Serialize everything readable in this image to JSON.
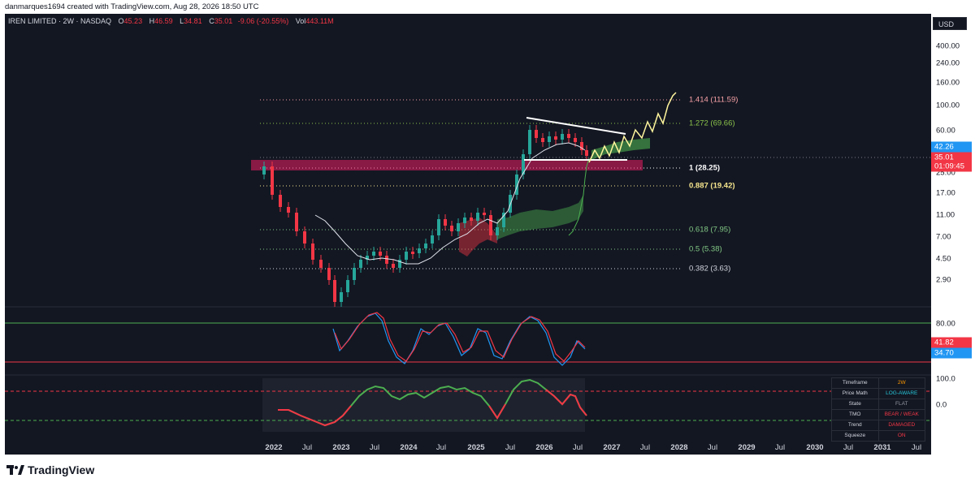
{
  "topline": "danmarques1694 created with TradingView.com, Aug 28, 2026 18:50 UTC",
  "header": {
    "symbol": "IREN LIMITED · 2W · NASDAQ",
    "open_label": "O",
    "open": "45.23",
    "high_label": "H",
    "high": "46.59",
    "low_label": "L",
    "low": "34.81",
    "close_label": "C",
    "close": "35.01",
    "change": "-9.06 (-20.55%)",
    "vol_label": "Vol",
    "vol": "443.11M"
  },
  "currency": "USD",
  "price_axis": [
    "400.00",
    "240.00",
    "160.00",
    "100.00",
    "60.00",
    "25.00",
    "17.00",
    "11.00",
    "7.00",
    "4.50",
    "2.90"
  ],
  "price_labels": {
    "ma_value": "42.26",
    "last_price": "35.01",
    "countdown": "01:09:45"
  },
  "fib_levels": [
    {
      "label": "1.414 (111.59)",
      "color": "#f7a1a6"
    },
    {
      "label": "1.272 (69.66)",
      "color": "#8bc34a"
    },
    {
      "label": "1 (28.25)",
      "color": "#ffffff"
    },
    {
      "label": "0.887 (19.42)",
      "color": "#f6e58d"
    },
    {
      "label": "0.618 (7.95)",
      "color": "#81c784"
    },
    {
      "label": "0.5 (5.38)",
      "color": "#81c784"
    },
    {
      "label": "0.382 (3.63)",
      "color": "#d1d4dc"
    }
  ],
  "oscillator_axis": {
    "upper": "80.00",
    "val1": "41.82",
    "val2": "34.70"
  },
  "tmo_axis": {
    "upper": "100.0",
    "zero": "0.0"
  },
  "time_axis": [
    "2022",
    "Jul",
    "2023",
    "Jul",
    "2024",
    "Jul",
    "2025",
    "Jul",
    "2026",
    "Jul",
    "2027",
    "Jul",
    "2028",
    "Jul",
    "2029",
    "Jul",
    "2030",
    "Jul",
    "2031",
    "Jul"
  ],
  "status_table": [
    {
      "label": "Timeframe",
      "value": "2W",
      "color": "#ff9800"
    },
    {
      "label": "Price Math",
      "value": "LOG-AWARE",
      "color": "#26c6da"
    },
    {
      "label": "State",
      "value": "FLAT",
      "color": "#9598a1"
    },
    {
      "label": "TMO",
      "value": "BEAR / WEAK",
      "color": "#f23645"
    },
    {
      "label": "Trend",
      "value": "DAMAGED",
      "color": "#f23645"
    },
    {
      "label": "Squeeze",
      "value": "ON",
      "color": "#f23645"
    }
  ],
  "colors": {
    "up": "#26a69a",
    "down": "#f23645",
    "zone": "#e91e63",
    "background": "#131722"
  },
  "brand": "TradingView"
}
